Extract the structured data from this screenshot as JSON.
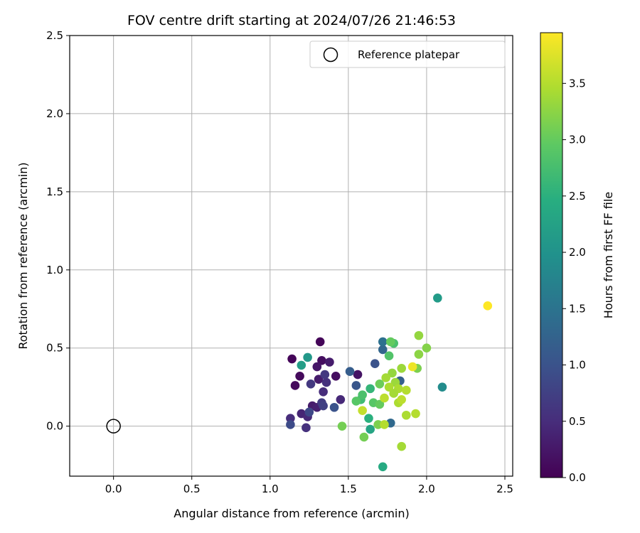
{
  "chart_data": {
    "type": "scatter",
    "title": "FOV centre drift starting at 2024/07/26 21:46:53",
    "xlabel": "Angular distance from reference (arcmin)",
    "ylabel": "Rotation from reference (arcmin)",
    "xlim": [
      -0.28,
      2.55
    ],
    "ylim": [
      -0.32,
      2.5
    ],
    "xticks": [
      0.0,
      0.5,
      1.0,
      1.5,
      2.0,
      2.5
    ],
    "xtick_labels": [
      "0.0",
      "0.5",
      "1.0",
      "1.5",
      "2.0",
      "2.5"
    ],
    "yticks": [
      0.0,
      0.5,
      1.0,
      1.5,
      2.0,
      2.5
    ],
    "ytick_labels": [
      "0.0",
      "0.5",
      "1.0",
      "1.5",
      "2.0",
      "2.5"
    ],
    "grid": true,
    "colormap": "viridis",
    "colorbar": {
      "label": "Hours from first FF file",
      "range": [
        0.0,
        3.95
      ],
      "ticks": [
        0.0,
        0.5,
        1.0,
        1.5,
        2.0,
        2.5,
        3.0,
        3.5
      ],
      "tick_labels": [
        "0.0",
        "0.5",
        "1.0",
        "1.5",
        "2.0",
        "2.5",
        "3.0",
        "3.5"
      ]
    },
    "legend": {
      "position": "top-right",
      "entries": [
        {
          "label": "Reference platepar",
          "marker": "hollow-circle"
        }
      ]
    },
    "reference_point": {
      "x": 0.0,
      "y": 0.0,
      "label": "Reference platepar"
    },
    "points": [
      {
        "x": 1.32,
        "y": 0.54,
        "t": 0.05
      },
      {
        "x": 1.14,
        "y": 0.43,
        "t": 0.05
      },
      {
        "x": 1.19,
        "y": 0.32,
        "t": 0.1
      },
      {
        "x": 1.16,
        "y": 0.26,
        "t": 0.1
      },
      {
        "x": 1.33,
        "y": 0.42,
        "t": 0.15
      },
      {
        "x": 1.42,
        "y": 0.32,
        "t": 0.15
      },
      {
        "x": 1.3,
        "y": 0.38,
        "t": 0.25
      },
      {
        "x": 1.38,
        "y": 0.41,
        "t": 0.3
      },
      {
        "x": 1.31,
        "y": 0.3,
        "t": 0.3
      },
      {
        "x": 1.56,
        "y": 0.33,
        "t": 0.2
      },
      {
        "x": 1.2,
        "y": 0.08,
        "t": 0.4
      },
      {
        "x": 1.24,
        "y": 0.06,
        "t": 0.45
      },
      {
        "x": 1.27,
        "y": 0.13,
        "t": 0.3
      },
      {
        "x": 1.3,
        "y": 0.12,
        "t": 0.35
      },
      {
        "x": 1.13,
        "y": 0.05,
        "t": 0.5
      },
      {
        "x": 1.34,
        "y": 0.22,
        "t": 0.5
      },
      {
        "x": 1.36,
        "y": 0.28,
        "t": 0.55
      },
      {
        "x": 1.45,
        "y": 0.17,
        "t": 0.45
      },
      {
        "x": 1.23,
        "y": -0.01,
        "t": 0.55
      },
      {
        "x": 1.26,
        "y": 0.27,
        "t": 0.65
      },
      {
        "x": 1.35,
        "y": 0.33,
        "t": 0.65
      },
      {
        "x": 1.33,
        "y": 0.15,
        "t": 0.7
      },
      {
        "x": 1.34,
        "y": 0.13,
        "t": 0.75
      },
      {
        "x": 1.25,
        "y": 0.09,
        "t": 0.85
      },
      {
        "x": 1.13,
        "y": 0.01,
        "t": 0.9
      },
      {
        "x": 1.41,
        "y": 0.12,
        "t": 1.0
      },
      {
        "x": 1.51,
        "y": 0.35,
        "t": 1.15
      },
      {
        "x": 1.55,
        "y": 0.26,
        "t": 1.05
      },
      {
        "x": 1.67,
        "y": 0.4,
        "t": 1.0
      },
      {
        "x": 1.72,
        "y": 0.49,
        "t": 1.3
      },
      {
        "x": 1.72,
        "y": 0.54,
        "t": 1.45
      },
      {
        "x": 1.77,
        "y": 0.02,
        "t": 1.35
      },
      {
        "x": 1.83,
        "y": 0.29,
        "t": 1.2
      },
      {
        "x": 1.24,
        "y": 0.44,
        "t": 2.1
      },
      {
        "x": 1.2,
        "y": 0.39,
        "t": 2.2
      },
      {
        "x": 2.07,
        "y": 0.82,
        "t": 2.15
      },
      {
        "x": 2.1,
        "y": 0.25,
        "t": 1.9
      },
      {
        "x": 1.72,
        "y": -0.26,
        "t": 2.4
      },
      {
        "x": 1.64,
        "y": -0.02,
        "t": 2.3
      },
      {
        "x": 1.63,
        "y": 0.05,
        "t": 2.5
      },
      {
        "x": 1.64,
        "y": 0.24,
        "t": 2.6
      },
      {
        "x": 1.58,
        "y": 0.17,
        "t": 2.7
      },
      {
        "x": 1.59,
        "y": 0.2,
        "t": 2.8
      },
      {
        "x": 1.76,
        "y": 0.45,
        "t": 2.85
      },
      {
        "x": 1.55,
        "y": 0.16,
        "t": 2.9
      },
      {
        "x": 1.66,
        "y": 0.15,
        "t": 2.9
      },
      {
        "x": 1.79,
        "y": 0.53,
        "t": 2.8
      },
      {
        "x": 1.77,
        "y": 0.54,
        "t": 3.0
      },
      {
        "x": 1.7,
        "y": 0.14,
        "t": 3.0
      },
      {
        "x": 1.7,
        "y": 0.27,
        "t": 3.05
      },
      {
        "x": 1.6,
        "y": -0.07,
        "t": 3.1
      },
      {
        "x": 1.46,
        "y": 0.0,
        "t": 3.1
      },
      {
        "x": 1.69,
        "y": 0.01,
        "t": 3.15
      },
      {
        "x": 1.95,
        "y": 0.58,
        "t": 3.3
      },
      {
        "x": 2.0,
        "y": 0.5,
        "t": 3.2
      },
      {
        "x": 1.95,
        "y": 0.46,
        "t": 3.25
      },
      {
        "x": 1.94,
        "y": 0.37,
        "t": 3.15
      },
      {
        "x": 1.84,
        "y": 0.37,
        "t": 3.35
      },
      {
        "x": 1.78,
        "y": 0.34,
        "t": 3.3
      },
      {
        "x": 1.74,
        "y": 0.31,
        "t": 3.4
      },
      {
        "x": 1.8,
        "y": 0.28,
        "t": 3.35
      },
      {
        "x": 1.82,
        "y": 0.24,
        "t": 3.45
      },
      {
        "x": 1.87,
        "y": 0.23,
        "t": 3.5
      },
      {
        "x": 1.76,
        "y": 0.25,
        "t": 3.45
      },
      {
        "x": 1.79,
        "y": 0.21,
        "t": 3.4
      },
      {
        "x": 1.73,
        "y": 0.18,
        "t": 3.55
      },
      {
        "x": 1.82,
        "y": 0.15,
        "t": 3.45
      },
      {
        "x": 1.84,
        "y": 0.17,
        "t": 3.55
      },
      {
        "x": 1.59,
        "y": 0.1,
        "t": 3.6
      },
      {
        "x": 1.87,
        "y": 0.07,
        "t": 3.45
      },
      {
        "x": 1.93,
        "y": 0.08,
        "t": 3.5
      },
      {
        "x": 1.73,
        "y": 0.01,
        "t": 3.5
      },
      {
        "x": 1.84,
        "y": -0.13,
        "t": 3.4
      },
      {
        "x": 1.91,
        "y": 0.38,
        "t": 3.85
      },
      {
        "x": 2.39,
        "y": 0.77,
        "t": 3.95
      }
    ]
  }
}
